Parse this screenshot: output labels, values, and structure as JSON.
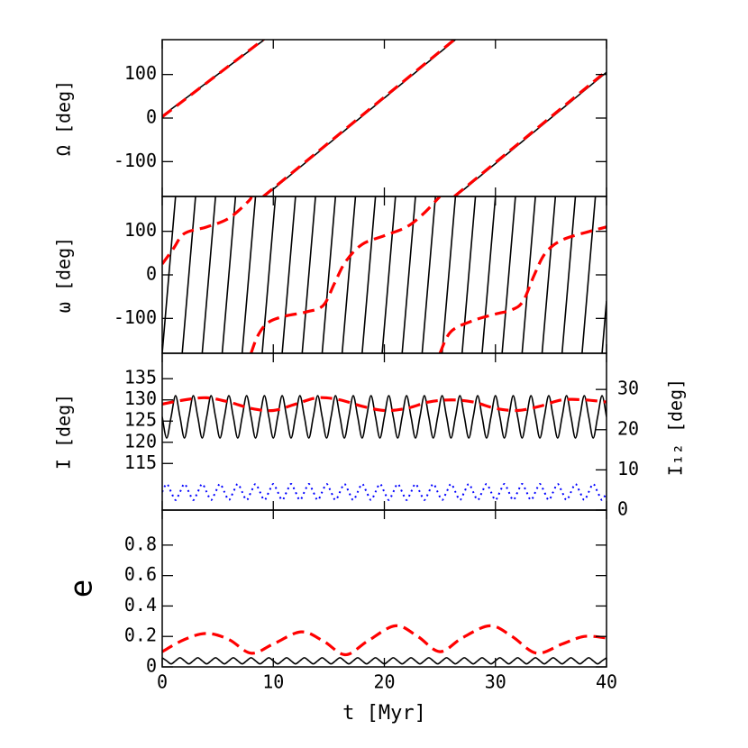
{
  "chart_data": [
    {
      "type": "line",
      "ylabel": "Ω [deg]",
      "xlim": [
        0,
        40
      ],
      "xticks": [
        0,
        10,
        20,
        30,
        40
      ],
      "ylim": [
        -180,
        180
      ],
      "yticks": [
        -100,
        0,
        100
      ],
      "series": [
        {
          "color": "#000000",
          "style": "solid",
          "x": [
            0,
            9.2,
            9.2,
            9.2,
            26.4,
            26.4,
            26.4,
            40
          ],
          "values": [
            5,
            180,
            null,
            -180,
            180,
            null,
            -180,
            105
          ]
        },
        {
          "color": "#ff0000",
          "style": "dashed",
          "x": [
            0,
            9.1,
            9.1,
            9.1,
            26.3,
            26.3,
            26.3,
            40
          ],
          "values": [
            3,
            180,
            null,
            -180,
            180,
            null,
            -180,
            108
          ]
        }
      ]
    },
    {
      "type": "line",
      "ylabel": "ω [deg]",
      "xlim": [
        0,
        40
      ],
      "xticks": [
        0,
        10,
        20,
        30,
        40
      ],
      "ylim": [
        -180,
        180
      ],
      "yticks": [
        -100,
        0,
        100
      ],
      "series": [
        {
          "color": "#000000",
          "style": "solid",
          "x": [
            0,
            1.2,
            1.2,
            1.8,
            3,
            3,
            3.6,
            4.8,
            4.8,
            5.4,
            6.6,
            6.6,
            7.2,
            8.4,
            8.4,
            9,
            10.2,
            10.2,
            10.8,
            12,
            12,
            12.6,
            13.8,
            13.8,
            14.4,
            15.6,
            15.6,
            16.2,
            17.4,
            17.4,
            18,
            19.2,
            19.2,
            19.8,
            21,
            21,
            21.6,
            22.8,
            22.8,
            23.4,
            24.6,
            24.6,
            25.2,
            26.4,
            26.4,
            27,
            28.2,
            28.2,
            28.8,
            30,
            30,
            30.6,
            31.8,
            31.8,
            32.4,
            33.6,
            33.6,
            34.2,
            35.4,
            35.4,
            36,
            37.2,
            37.2,
            37.8,
            39,
            39,
            39.6,
            40
          ],
          "values": [
            -180,
            180,
            null,
            -180,
            180,
            null,
            -180,
            180,
            null,
            -180,
            180,
            null,
            -180,
            180,
            null,
            -180,
            180,
            null,
            -180,
            180,
            null,
            -180,
            180,
            null,
            -180,
            180,
            null,
            -180,
            180,
            null,
            -180,
            180,
            null,
            -180,
            180,
            null,
            -180,
            180,
            null,
            -180,
            180,
            null,
            -180,
            180,
            null,
            -180,
            180,
            null,
            -180,
            180,
            null,
            -180,
            180,
            null,
            -180,
            180,
            null,
            -180,
            180,
            null,
            -180,
            180,
            null,
            -180,
            180,
            null,
            -180,
            -60
          ]
        },
        {
          "color": "#ff0000",
          "style": "dashed",
          "x": [
            0,
            1,
            2,
            4,
            6,
            7.8,
            8,
            8,
            8,
            8.6,
            9.5,
            11,
            13,
            14.5,
            15.5,
            16.5,
            18,
            20,
            22,
            23.5,
            25,
            25,
            25,
            26,
            28,
            30,
            31.5,
            32.5,
            33.5,
            34.5,
            36,
            38.5,
            40
          ],
          "values": [
            25,
            60,
            95,
            110,
            130,
            170,
            180,
            null,
            -180,
            -140,
            -110,
            -95,
            -85,
            -70,
            -20,
            30,
            70,
            90,
            110,
            140,
            180,
            null,
            -180,
            -130,
            -105,
            -90,
            -80,
            -60,
            0,
            50,
            80,
            100,
            110
          ]
        }
      ]
    },
    {
      "type": "line",
      "ylabel": "I [deg]",
      "y2label": "I₁₂ [deg]",
      "xlim": [
        0,
        40
      ],
      "xticks": [
        0,
        10,
        20,
        30,
        40
      ],
      "ylim": [
        104,
        141
      ],
      "yticks": [
        115,
        120,
        125,
        130,
        135
      ],
      "y2lim": [
        0,
        39
      ],
      "y2ticks": [
        0,
        10,
        20,
        30
      ],
      "x": [
        0,
        0.4,
        0.8,
        1.2,
        1.6,
        2,
        2.4,
        2.8,
        3.2,
        3.6,
        4,
        4.4,
        4.8,
        5.2,
        5.6,
        6,
        6.4,
        6.8,
        7.2,
        7.6,
        8,
        8.4,
        8.8,
        9.2,
        9.6,
        10,
        10.4,
        10.8,
        11.2,
        11.6,
        12,
        12.4,
        12.8,
        13.2,
        13.6,
        14,
        14.4,
        14.8,
        15.2,
        15.6,
        16,
        16.4,
        16.8,
        17.2,
        17.6,
        18,
        18.4,
        18.8,
        19.2,
        19.6,
        20,
        20.4,
        20.8,
        21.2,
        21.6,
        22,
        22.4,
        22.8,
        23.2,
        23.6,
        24,
        24.4,
        24.8,
        25.2,
        25.6,
        26,
        26.4,
        26.8,
        27.2,
        27.6,
        28,
        28.4,
        28.8,
        29.2,
        29.6,
        30,
        30.4,
        30.8,
        31.2,
        31.6,
        32,
        32.4,
        32.8,
        33.2,
        33.6,
        34,
        34.4,
        34.8,
        35.2,
        35.6,
        36,
        36.4,
        36.8,
        37.2,
        37.6,
        38,
        38.4,
        38.8,
        39.2,
        39.6,
        40
      ],
      "series": [
        {
          "color": "#000000",
          "style": "solid",
          "values": [
            126,
            121,
            126,
            131,
            126,
            121,
            126,
            131,
            126,
            121,
            126,
            131,
            126,
            121,
            126,
            131,
            126,
            121,
            126,
            131,
            126,
            121,
            126,
            131,
            126,
            121,
            126,
            131,
            126,
            121,
            126,
            131,
            126,
            121,
            126,
            131,
            126,
            121,
            126,
            131,
            126,
            121,
            126,
            131,
            126,
            121,
            126,
            131,
            126,
            121,
            126,
            131,
            126,
            121,
            126,
            131,
            126,
            121,
            126,
            131,
            126,
            121,
            126,
            131,
            126,
            121,
            126,
            131,
            126,
            121,
            126,
            131,
            126,
            121,
            126,
            131,
            126,
            121,
            126,
            131,
            126,
            121,
            126,
            131,
            126,
            121,
            126,
            131,
            126,
            121,
            126,
            131,
            126,
            121,
            126,
            131,
            126,
            121,
            126,
            131,
            126
          ]
        },
        {
          "color": "#ff0000",
          "style": "dashed",
          "x": [
            0,
            2,
            4,
            6,
            8,
            10,
            12,
            14,
            16,
            18,
            20,
            22,
            24,
            26,
            28,
            30,
            32,
            34,
            36,
            38,
            40
          ],
          "values": [
            129,
            130,
            130.5,
            129.5,
            128,
            127.5,
            129,
            130.5,
            130,
            128.5,
            127.5,
            128,
            129.5,
            130,
            129.5,
            128,
            127.5,
            128.5,
            130,
            130,
            129.5
          ]
        },
        {
          "color": "#0000ff",
          "style": "dotted",
          "axis": "y2",
          "values": [
            4.5,
            6.5,
            4.5,
            2.5,
            4.5,
            6.5,
            4.5,
            2.5,
            4.5,
            6.5,
            4.5,
            2.5,
            4.5,
            6.5,
            4.5,
            2.5,
            4.5,
            6.5,
            4.5,
            2.5,
            4.5,
            6.5,
            4.5,
            2.5,
            4.5,
            6.5,
            4.5,
            2.5,
            4.5,
            6.5,
            4.5,
            2.5,
            4.5,
            6.5,
            4.5,
            2.5,
            4.5,
            6.5,
            4.5,
            2.5,
            4.5,
            6.5,
            4.5,
            2.5,
            4.5,
            6.5,
            4.5,
            2.5,
            4.5,
            6.5,
            4.5,
            2.5,
            4.5,
            6.5,
            4.5,
            2.5,
            4.5,
            6.5,
            4.5,
            2.5,
            4.5,
            6.5,
            4.5,
            2.5,
            4.5,
            6.5,
            4.5,
            2.5,
            4.5,
            6.5,
            4.5,
            2.5,
            4.5,
            6.5,
            4.5,
            2.5,
            4.5,
            6.5,
            4.5,
            2.5,
            4.5,
            6.5,
            4.5,
            2.5,
            4.5,
            6.5,
            4.5,
            2.5,
            4.5,
            6.5,
            4.5,
            2.5,
            4.5,
            6.5,
            4.5,
            2.5,
            4.5,
            6.5,
            4.5,
            2.5,
            4.5
          ]
        }
      ]
    },
    {
      "type": "line",
      "ylabel": "e",
      "xlabel": "t [Myr]",
      "xlim": [
        0,
        40
      ],
      "xticks": [
        0,
        10,
        20,
        30,
        40
      ],
      "ylim": [
        0,
        1.03
      ],
      "yticks": [
        0,
        0.2,
        0.4,
        0.6,
        0.8
      ],
      "x": [
        0,
        0.4,
        0.8,
        1.2,
        1.6,
        2,
        2.4,
        2.8,
        3.2,
        3.6,
        4,
        4.4,
        4.8,
        5.2,
        5.6,
        6,
        6.4,
        6.8,
        7.2,
        7.6,
        8,
        8.4,
        8.8,
        9.2,
        9.6,
        10,
        10.4,
        10.8,
        11.2,
        11.6,
        12,
        12.4,
        12.8,
        13.2,
        13.6,
        14,
        14.4,
        14.8,
        15.2,
        15.6,
        16,
        16.4,
        16.8,
        17.2,
        17.6,
        18,
        18.4,
        18.8,
        19.2,
        19.6,
        20,
        20.4,
        20.8,
        21.2,
        21.6,
        22,
        22.4,
        22.8,
        23.2,
        23.6,
        24,
        24.4,
        24.8,
        25.2,
        25.6,
        26,
        26.4,
        26.8,
        27.2,
        27.6,
        28,
        28.4,
        28.8,
        29.2,
        29.6,
        30,
        30.4,
        30.8,
        31.2,
        31.6,
        32,
        32.4,
        32.8,
        33.2,
        33.6,
        34,
        34.4,
        34.8,
        35.2,
        35.6,
        36,
        36.4,
        36.8,
        37.2,
        37.6,
        38,
        38.4,
        38.8,
        39.2,
        39.6,
        40
      ],
      "series": [
        {
          "color": "#000000",
          "style": "solid",
          "values": [
            0.06,
            0.04,
            0.02,
            0.04,
            0.06,
            0.04,
            0.02,
            0.04,
            0.06,
            0.04,
            0.02,
            0.04,
            0.06,
            0.04,
            0.02,
            0.04,
            0.06,
            0.04,
            0.02,
            0.04,
            0.06,
            0.04,
            0.02,
            0.04,
            0.06,
            0.04,
            0.02,
            0.04,
            0.06,
            0.04,
            0.02,
            0.04,
            0.06,
            0.04,
            0.02,
            0.04,
            0.06,
            0.04,
            0.02,
            0.04,
            0.06,
            0.04,
            0.02,
            0.04,
            0.06,
            0.04,
            0.02,
            0.04,
            0.06,
            0.04,
            0.02,
            0.04,
            0.06,
            0.04,
            0.02,
            0.04,
            0.06,
            0.04,
            0.02,
            0.04,
            0.06,
            0.04,
            0.02,
            0.04,
            0.06,
            0.04,
            0.02,
            0.04,
            0.06,
            0.04,
            0.02,
            0.04,
            0.06,
            0.04,
            0.02,
            0.04,
            0.06,
            0.04,
            0.02,
            0.04,
            0.06,
            0.04,
            0.02,
            0.04,
            0.06,
            0.04,
            0.02,
            0.04,
            0.06,
            0.04,
            0.02,
            0.04,
            0.06,
            0.04,
            0.02,
            0.04,
            0.06,
            0.04,
            0.02,
            0.04,
            0.06
          ]
        },
        {
          "color": "#ff0000",
          "style": "dashed",
          "x": [
            0,
            2,
            4,
            6,
            8,
            10,
            12.5,
            14.5,
            16.5,
            18.5,
            21,
            23,
            25,
            27,
            29.5,
            31.5,
            33.7,
            36,
            38,
            40
          ],
          "values": [
            0.1,
            0.18,
            0.22,
            0.18,
            0.09,
            0.15,
            0.23,
            0.17,
            0.08,
            0.17,
            0.27,
            0.2,
            0.1,
            0.19,
            0.27,
            0.2,
            0.09,
            0.15,
            0.2,
            0.19
          ]
        }
      ]
    }
  ]
}
